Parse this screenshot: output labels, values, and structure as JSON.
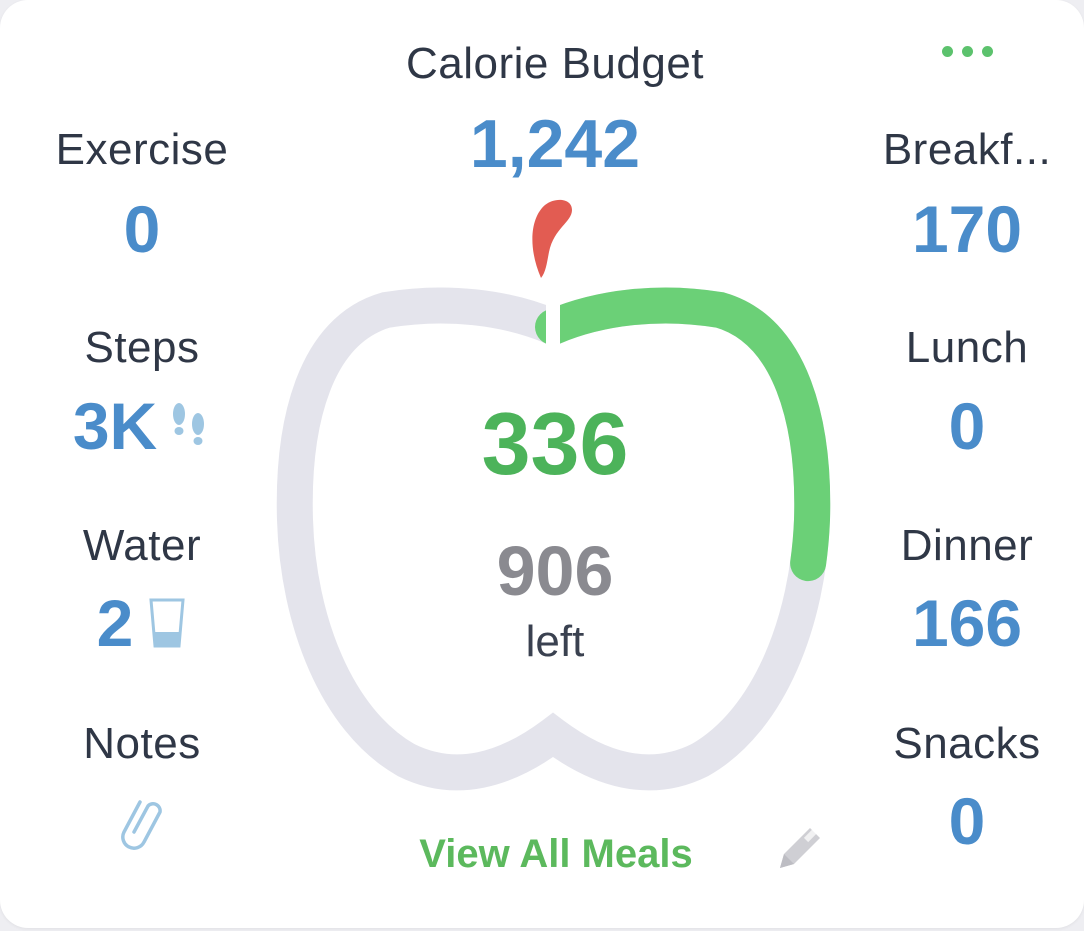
{
  "title": "Calorie Budget",
  "budget": "1,242",
  "consumed": "336",
  "remaining": "906",
  "remaining_label": "left",
  "progress_fraction": 0.2705,
  "left_items": [
    {
      "label": "Exercise",
      "value": "0"
    },
    {
      "label": "Steps",
      "value": "3K",
      "icon": "footsteps-icon"
    },
    {
      "label": "Water",
      "value": "2",
      "icon": "water-glass-icon"
    },
    {
      "label": "Notes",
      "icon": "paperclip-icon"
    }
  ],
  "right_items": [
    {
      "label": "Breakf...",
      "value": "170"
    },
    {
      "label": "Lunch",
      "value": "0"
    },
    {
      "label": "Dinner",
      "value": "166"
    },
    {
      "label": "Snacks",
      "value": "0"
    }
  ],
  "view_all_label": "View All Meals",
  "icons": {
    "more": "more-options-icon",
    "edit": "pencil-icon",
    "leaf": "apple-leaf-icon"
  },
  "colors": {
    "accent_green": "#5cc26d",
    "value_blue": "#4a8cca",
    "ring_track": "#e4e4ec",
    "leaf_red": "#e25c52"
  }
}
